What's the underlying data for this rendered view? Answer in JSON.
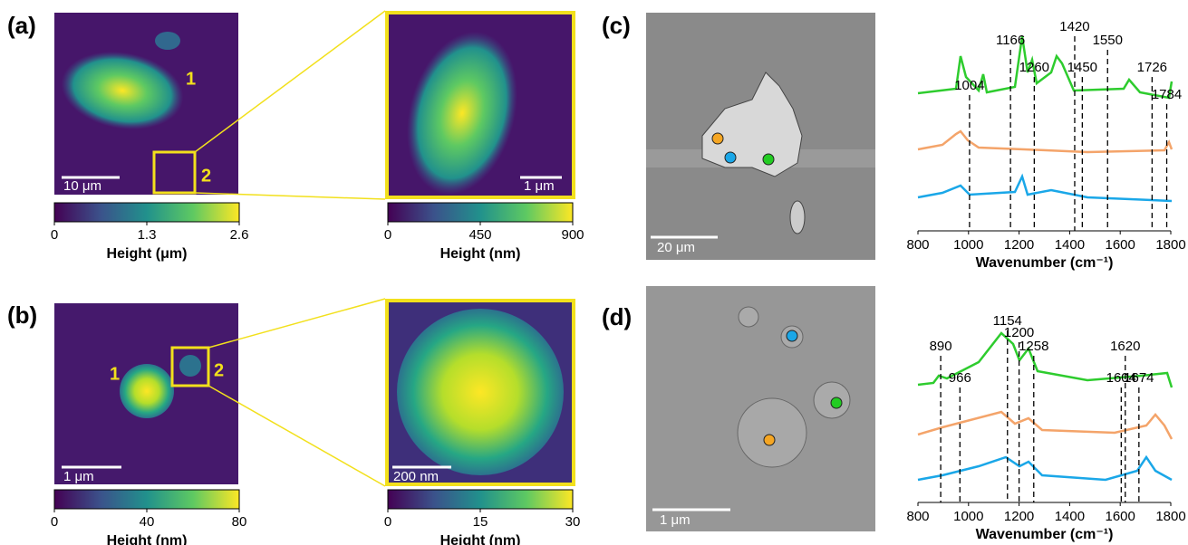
{
  "panels": [
    {
      "label": "(a)",
      "images": [
        {
          "scale_bar": "10 μm",
          "markers": [
            "1",
            "2"
          ]
        },
        {
          "scale_bar": "1 μm"
        }
      ],
      "colorbars": [
        {
          "ticks": [
            0,
            1.3,
            2.6
          ],
          "label": "Height (μm)"
        },
        {
          "ticks": [
            0,
            450,
            900
          ],
          "label": "Height (nm)"
        }
      ]
    },
    {
      "label": "(b)",
      "images": [
        {
          "scale_bar": "1 μm",
          "markers": [
            "1",
            "2"
          ]
        },
        {
          "scale_bar": "200 nm"
        }
      ],
      "colorbars": [
        {
          "ticks": [
            0,
            40,
            80
          ],
          "label": "Height (nm)"
        },
        {
          "ticks": [
            0,
            15,
            30
          ],
          "label": "Height (nm)"
        }
      ]
    },
    {
      "label": "(c)",
      "image": {
        "scale_bar": "20 μm"
      },
      "spectrum": {
        "xlim": [
          800,
          1800
        ],
        "xticks": [
          800,
          1000,
          1200,
          1400,
          1600,
          1800
        ],
        "xlabel": "Wavenumber (cm⁻¹)",
        "peaks": [
          1004,
          1166,
          1260,
          1420,
          1450,
          1550,
          1726,
          1784
        ]
      }
    },
    {
      "label": "(d)",
      "image": {
        "scale_bar": "1 μm"
      },
      "spectrum": {
        "xlim": [
          800,
          1800
        ],
        "xticks": [
          800,
          1000,
          1200,
          1400,
          1600,
          1800
        ],
        "xlabel": "Wavenumber (cm⁻¹)",
        "peaks": [
          890,
          966,
          1154,
          1200,
          1258,
          1604,
          1620,
          1674
        ]
      }
    }
  ]
}
